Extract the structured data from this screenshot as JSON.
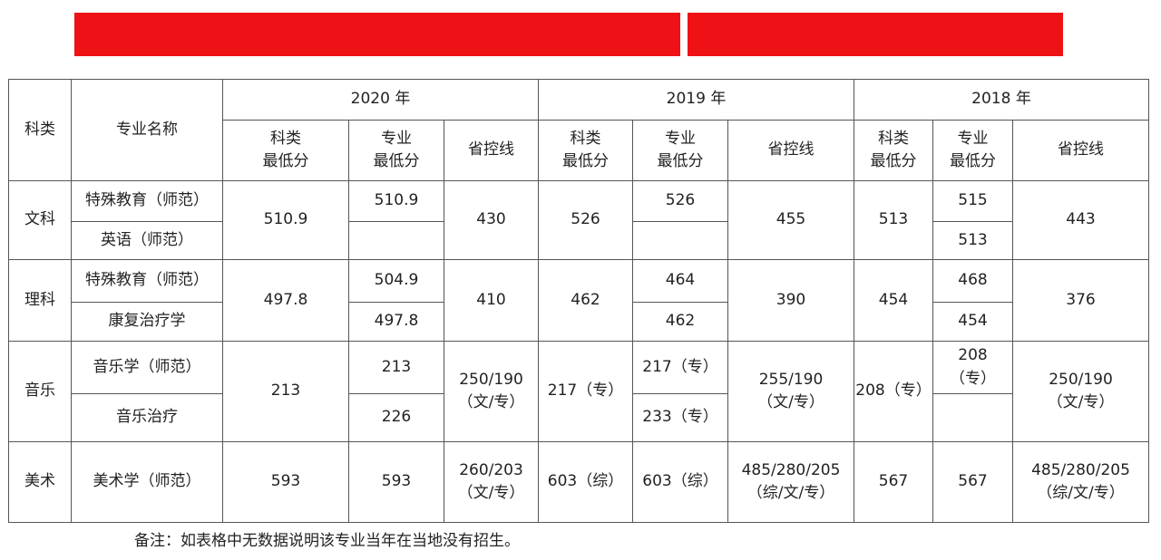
{
  "table": {
    "header": {
      "category": "科类",
      "major": "专业名称",
      "years": [
        "2020 年",
        "2019 年",
        "2018 年"
      ],
      "sub": {
        "cat_min": [
          "科类",
          "最低分"
        ],
        "major_min": [
          "专业",
          "最低分"
        ],
        "control": "省控线"
      }
    },
    "groups": [
      {
        "name": "文科",
        "majors": [
          "特殊教育（师范）",
          "英语（师范）"
        ],
        "y2020": {
          "cat_min": "510.9",
          "major_min": [
            "510.9",
            ""
          ],
          "control": "430"
        },
        "y2019": {
          "cat_min": "526",
          "major_min": [
            "526",
            ""
          ],
          "control": "455"
        },
        "y2018": {
          "cat_min": "513",
          "major_min": [
            "515",
            "513"
          ],
          "control": "443"
        }
      },
      {
        "name": "理科",
        "majors": [
          "特殊教育（师范）",
          "康复治疗学"
        ],
        "y2020": {
          "cat_min": "497.8",
          "major_min": [
            "504.9",
            "497.8"
          ],
          "control": "410"
        },
        "y2019": {
          "cat_min": "462",
          "major_min": [
            "464",
            "462"
          ],
          "control": "390"
        },
        "y2018": {
          "cat_min": "454",
          "major_min": [
            "468",
            "454"
          ],
          "control": "376"
        }
      },
      {
        "name": "音乐",
        "majors": [
          "音乐学（师范）",
          "音乐治疗"
        ],
        "y2020": {
          "cat_min": "213",
          "major_min": [
            "213",
            "226"
          ],
          "control": [
            "250/190",
            "（文/专）"
          ]
        },
        "y2019": {
          "cat_min": "217（专）",
          "major_min": [
            "217（专）",
            "233（专）"
          ],
          "control": [
            "255/190",
            "（文/专）"
          ]
        },
        "y2018": {
          "cat_min": "208（专）",
          "major_min": [
            [
              "208",
              "（专）"
            ],
            ""
          ],
          "control": [
            "250/190",
            "（文/专）"
          ]
        }
      },
      {
        "name": "美术",
        "majors": [
          "美术学（师范）"
        ],
        "y2020": {
          "cat_min": "593",
          "major_min": [
            "593"
          ],
          "control": [
            "260/203",
            "（文/专）"
          ]
        },
        "y2019": {
          "cat_min": "603（综）",
          "major_min": [
            "603（综）"
          ],
          "control": [
            "485/280/205",
            "（综/文/专）"
          ]
        },
        "y2018": {
          "cat_min": "567",
          "major_min": [
            "567"
          ],
          "control": [
            "485/280/205",
            "（综/文/专）"
          ]
        }
      }
    ]
  },
  "note": "备注：如表格中无数据说明该专业当年在当地没有招生。",
  "colors": {
    "banner": "#ee1115",
    "border": "#555555",
    "text": "#222222"
  }
}
